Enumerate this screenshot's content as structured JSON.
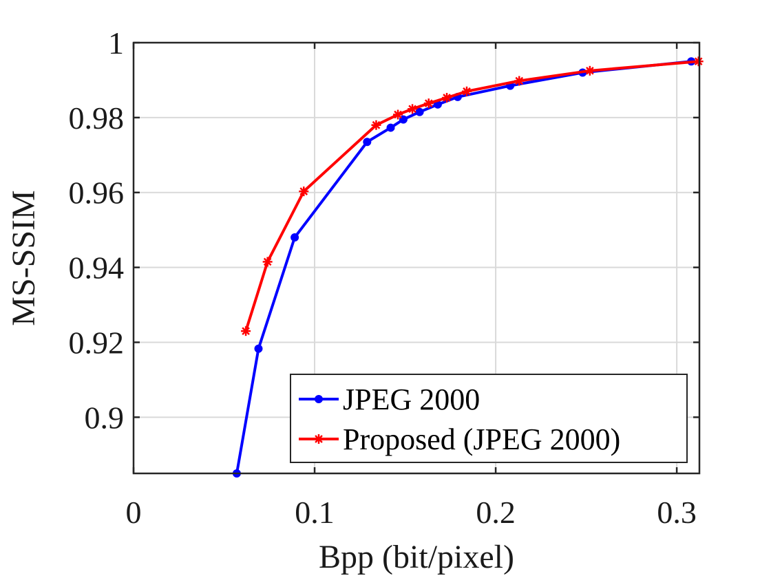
{
  "chart_data": {
    "type": "line",
    "xlabel": "Bpp (bit/pixel)",
    "ylabel": "MS-SSIM",
    "xlim": [
      0,
      0.3125
    ],
    "ylim": [
      0.885,
      1.0
    ],
    "xticks": [
      0,
      0.1,
      0.2,
      0.3
    ],
    "xtick_labels": [
      "0",
      "0.1",
      "0.2",
      "0.3"
    ],
    "yticks": [
      0.9,
      0.92,
      0.94,
      0.96,
      0.98,
      1.0
    ],
    "ytick_labels": [
      "0.9",
      "0.92",
      "0.94",
      "0.96",
      "0.98",
      "1"
    ],
    "grid": true,
    "legend_position": "bottom-right",
    "series": [
      {
        "name": "JPEG 2000",
        "color": "#0000ff",
        "marker": "dot",
        "x": [
          0.057,
          0.069,
          0.089,
          0.129,
          0.142,
          0.149,
          0.158,
          0.168,
          0.179,
          0.208,
          0.248,
          0.308
        ],
        "y": [
          0.885,
          0.9183,
          0.948,
          0.9735,
          0.9773,
          0.9795,
          0.9815,
          0.9835,
          0.9855,
          0.9885,
          0.992,
          0.995
        ]
      },
      {
        "name": "Proposed (JPEG 2000)",
        "color": "#ff0000",
        "marker": "star",
        "x": [
          0.062,
          0.074,
          0.094,
          0.134,
          0.146,
          0.154,
          0.163,
          0.173,
          0.184,
          0.213,
          0.252,
          0.312
        ],
        "y": [
          0.923,
          0.9415,
          0.9603,
          0.978,
          0.9808,
          0.9823,
          0.9838,
          0.9853,
          0.987,
          0.9898,
          0.9925,
          0.995
        ]
      }
    ]
  }
}
